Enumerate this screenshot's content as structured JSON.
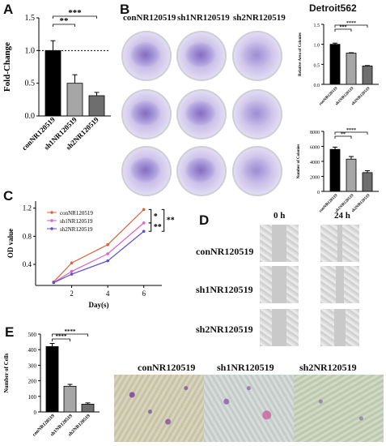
{
  "panels": {
    "A": "A",
    "B": "B",
    "C": "C",
    "D": "D",
    "E": "E"
  },
  "groups": [
    "conNR120519",
    "sh1NR120519",
    "sh2NR120519"
  ],
  "panelB": {
    "cellline": "Detroit562"
  },
  "panelD": {
    "time_labels": [
      "0 h",
      "24 h"
    ]
  },
  "colors": {
    "con": "#000000",
    "sh1": "#a6a6a6",
    "sh2": "#6e6e6e",
    "line_con": "#d9643c",
    "line_sh1": "#e05fc0",
    "line_sh2": "#5b4fd3"
  },
  "chart_data": [
    {
      "id": "A",
      "type": "bar",
      "categories": [
        "conNR120519",
        "sh1NR120519",
        "sh2NR120519"
      ],
      "values": [
        1.0,
        0.5,
        0.31
      ],
      "errors": [
        0.15,
        0.13,
        0.05
      ],
      "ylabel": "Fold-Change",
      "ylim": [
        0.0,
        1.5
      ],
      "yticks": [
        "0.0",
        "0.5",
        "1.0",
        "1.5"
      ],
      "sig": [
        "**",
        "***"
      ]
    },
    {
      "id": "B1",
      "type": "bar",
      "categories": [
        "conNR120519",
        "sh1NR120519",
        "sh2NR120519"
      ],
      "values": [
        1.0,
        0.78,
        0.46
      ],
      "errors": [
        0.03,
        0.01,
        0.01
      ],
      "ylabel": "Relative Area of Colonies",
      "ylim": [
        0.0,
        1.5
      ],
      "yticks": [
        "0.0",
        "0.5",
        "1.0",
        "1.5"
      ],
      "sig": [
        "***",
        "****"
      ]
    },
    {
      "id": "B2",
      "type": "bar",
      "categories": [
        "conNR120519",
        "sh1NR120519",
        "sh2NR120519"
      ],
      "values": [
        5600,
        4300,
        2500
      ],
      "errors": [
        300,
        350,
        250
      ],
      "ylabel": "Number of Colonies",
      "ylim": [
        0,
        8000
      ],
      "yticks": [
        "0",
        "2000",
        "4000",
        "6000",
        "8000"
      ],
      "sig": [
        "**",
        "****"
      ]
    },
    {
      "id": "C",
      "type": "line",
      "x": [
        1,
        2,
        4,
        6
      ],
      "xticks": [
        "2",
        "4",
        "6"
      ],
      "xlabel": "Day(s)",
      "ylabel": "OD value",
      "ylim": [
        0.1,
        1.3
      ],
      "yticks": [
        "0.4",
        "0.8",
        "1.2"
      ],
      "series": [
        {
          "name": "conNR120519",
          "values": [
            0.15,
            0.42,
            0.68,
            1.18
          ]
        },
        {
          "name": "sh1NR120519",
          "values": [
            0.14,
            0.3,
            0.55,
            0.99
          ]
        },
        {
          "name": "sh2NR120519",
          "values": [
            0.14,
            0.26,
            0.45,
            0.87
          ]
        }
      ],
      "sig": [
        "*",
        "**",
        "**"
      ]
    },
    {
      "id": "E",
      "type": "bar",
      "categories": [
        "conNR120519",
        "sh1NR120519",
        "sh2NR120519"
      ],
      "values": [
        420,
        165,
        50
      ],
      "errors": [
        20,
        12,
        8
      ],
      "ylabel": "Number of Cells",
      "ylim": [
        0,
        500
      ],
      "yticks": [
        "0",
        "100",
        "200",
        "300",
        "400",
        "500"
      ],
      "sig": [
        "****",
        "****"
      ]
    }
  ]
}
